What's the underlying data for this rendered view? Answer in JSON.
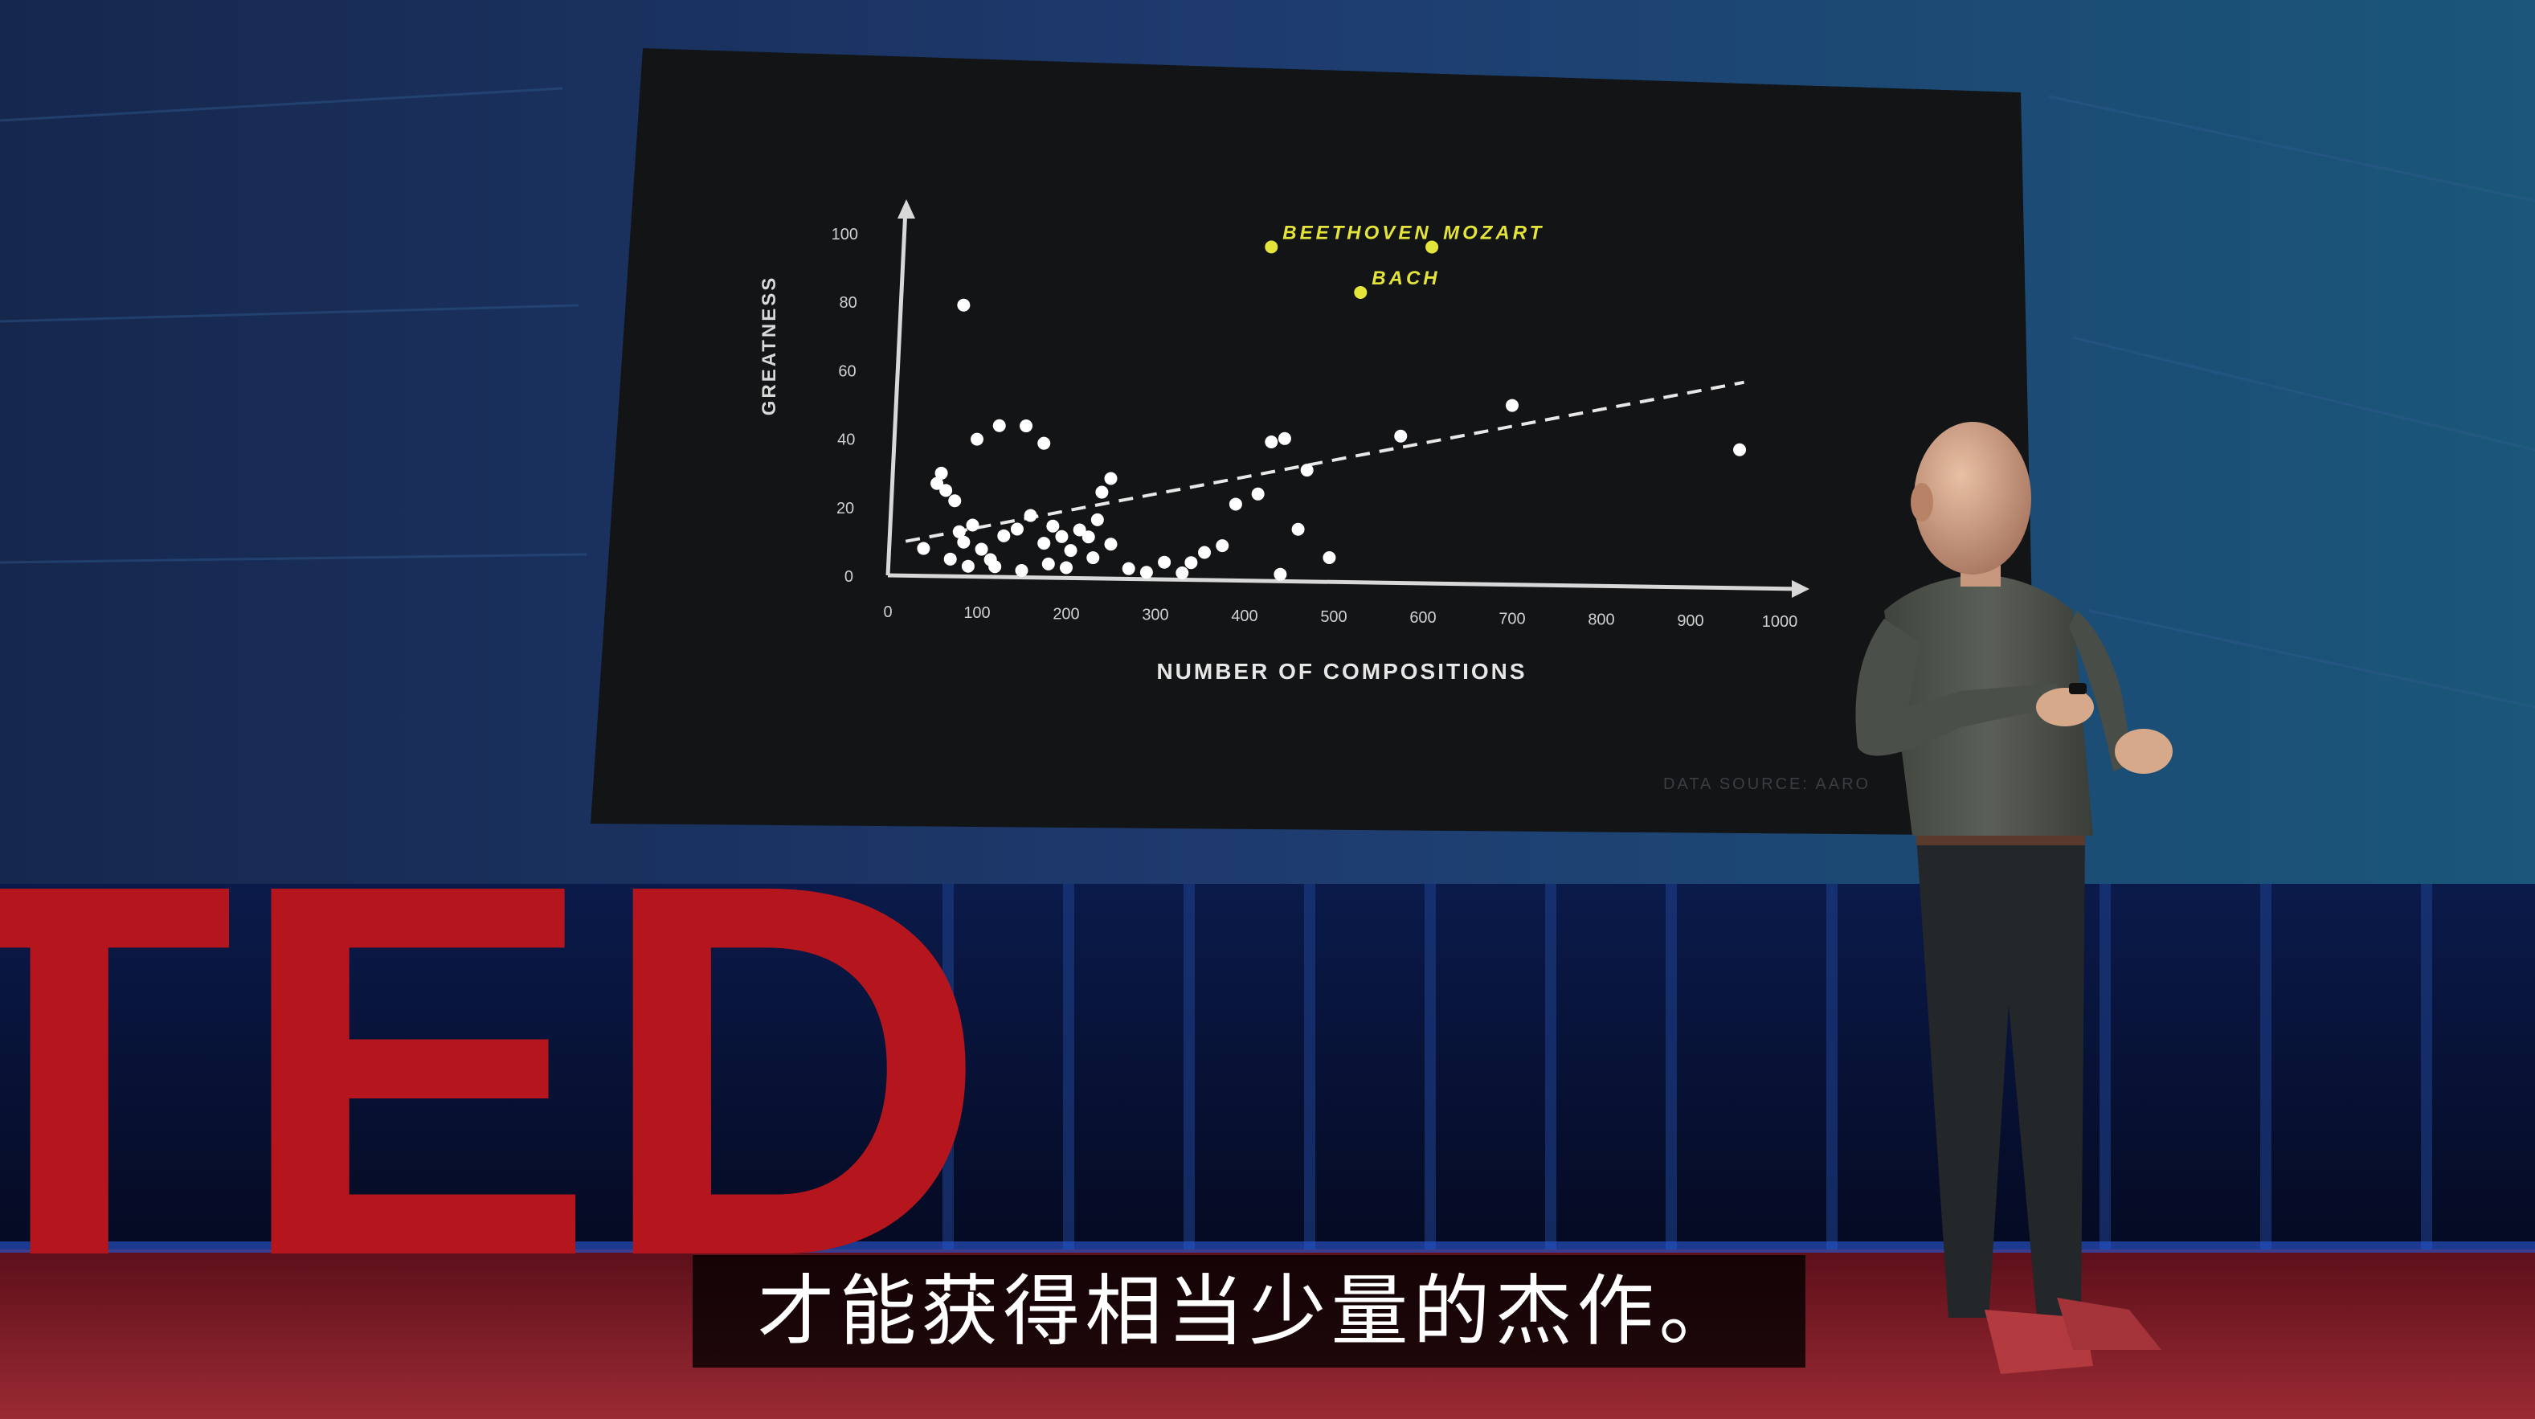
{
  "stage": {
    "logo_text": "TED",
    "logo_color": "#b5161d",
    "backdrop_color": "#1b3567",
    "floor_color": "#7a1520"
  },
  "slide": {
    "data_source": "DATA SOURCE: AARO",
    "highlight_color": "#e4e43a",
    "point_color": "#ffffff"
  },
  "chart_data": {
    "type": "scatter",
    "xlabel": "NUMBER OF COMPOSITIONS",
    "ylabel": "GREATNESS",
    "xlim": [
      0,
      1000
    ],
    "ylim": [
      0,
      100
    ],
    "x_ticks": [
      "0",
      "100",
      "200",
      "300",
      "400",
      "500",
      "600",
      "700",
      "800",
      "900",
      "1000"
    ],
    "y_ticks": [
      "0",
      "20",
      "40",
      "60",
      "80",
      "100"
    ],
    "grid": false,
    "trend_line": {
      "style": "dashed",
      "from": [
        20,
        10
      ],
      "to": [
        960,
        58
      ]
    },
    "points": [
      [
        85,
        79
      ],
      [
        60,
        30
      ],
      [
        65,
        25
      ],
      [
        75,
        22
      ],
      [
        55,
        27
      ],
      [
        100,
        40
      ],
      [
        125,
        44
      ],
      [
        155,
        44
      ],
      [
        175,
        39
      ],
      [
        80,
        13
      ],
      [
        85,
        10
      ],
      [
        95,
        15
      ],
      [
        105,
        8
      ],
      [
        115,
        5
      ],
      [
        130,
        12
      ],
      [
        145,
        14
      ],
      [
        160,
        18
      ],
      [
        175,
        10
      ],
      [
        185,
        15
      ],
      [
        195,
        12
      ],
      [
        205,
        8
      ],
      [
        215,
        14
      ],
      [
        225,
        12
      ],
      [
        235,
        17
      ],
      [
        240,
        25
      ],
      [
        250,
        29
      ],
      [
        70,
        5
      ],
      [
        90,
        3
      ],
      [
        120,
        3
      ],
      [
        150,
        2
      ],
      [
        180,
        4
      ],
      [
        200,
        3
      ],
      [
        230,
        6
      ],
      [
        270,
        3
      ],
      [
        290,
        2
      ],
      [
        310,
        5
      ],
      [
        330,
        2
      ],
      [
        340,
        5
      ],
      [
        355,
        8
      ],
      [
        375,
        10
      ],
      [
        390,
        22
      ],
      [
        415,
        25
      ],
      [
        430,
        40
      ],
      [
        445,
        41
      ],
      [
        460,
        15
      ],
      [
        470,
        32
      ],
      [
        440,
        2
      ],
      [
        495,
        7
      ],
      [
        575,
        42
      ],
      [
        700,
        51
      ],
      [
        955,
        39
      ],
      [
        250,
        10
      ],
      [
        40,
        8
      ]
    ],
    "labeled_points": [
      {
        "label": "BEETHOVEN",
        "x": 430,
        "y": 96
      },
      {
        "label": "MOZART",
        "x": 610,
        "y": 96
      },
      {
        "label": "BACH",
        "x": 530,
        "y": 83
      }
    ]
  },
  "subtitle": {
    "text": "才能获得相当少量的杰作。"
  }
}
